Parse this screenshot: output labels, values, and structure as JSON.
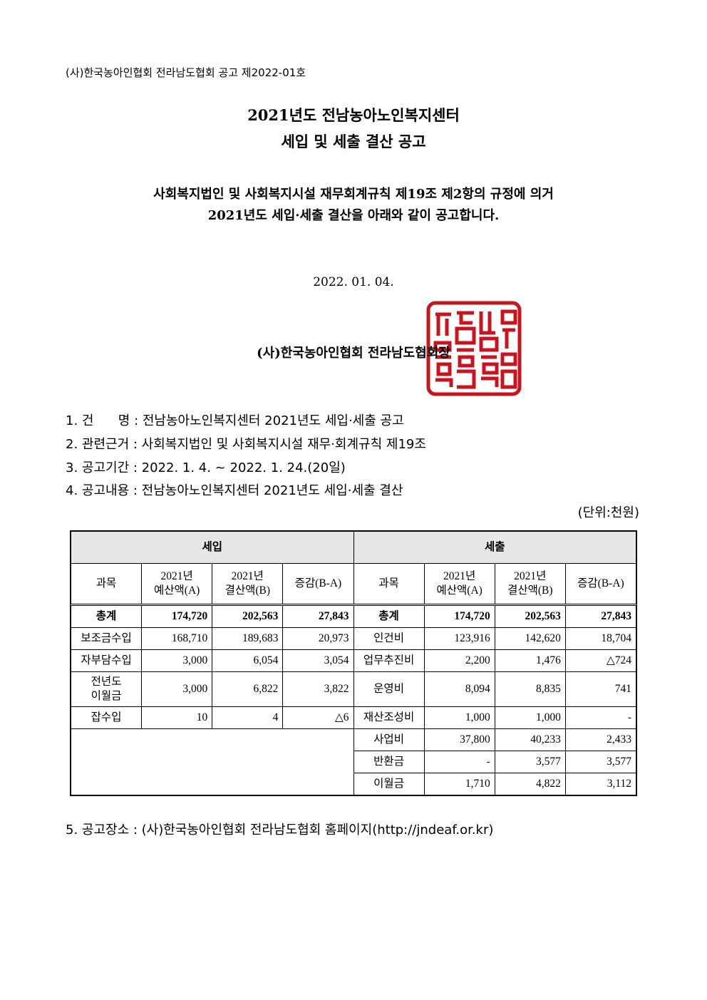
{
  "notice_header": "(사)한국농아인협회 전라남도협회 공고 제2022-01호",
  "title": [
    "2021년도 전남농아노인복지센터",
    "세입 및 세출 결산 공고"
  ],
  "intro": [
    "사회복지법인 및 사회복지시설 재무회계규칙 제19조 제2항의 규정에 의거",
    "2021년도 세입·세출 결산을 아래와 같이 공고합니다."
  ],
  "date": "2022. 01. 04.",
  "signatory": "(사)한국농아인협회 전라남도협회장",
  "seal": {
    "color": "#c8141e"
  },
  "items": [
    "1. 건      명 : 전남농아노인복지센터 2021년도 세입·세출 공고",
    "2. 관련근거 : 사회복지법인 및 사회복지시설 재무·회계규칙 제19조",
    "3. 공고기간 : 2022. 1. 4. ~ 2022. 1. 24.(20일)",
    "4. 공고내용 : 전남농아노인복지센터 2021년도 세입·세출 결산"
  ],
  "unit": "(단위:천원)",
  "table": {
    "revenue_label": "세입",
    "expense_label": "세출",
    "columns": [
      "과목",
      "2021년\n예산액(A)",
      "2021년\n결산액(B)",
      "증감(B-A)"
    ],
    "revenue_rows": [
      [
        "총계",
        "174,720",
        "202,563",
        "27,843"
      ],
      [
        "보조금수입",
        "168,710",
        "189,683",
        "20,973"
      ],
      [
        "자부담수입",
        "3,000",
        "6,054",
        "3,054"
      ],
      [
        "전년도\n이월금",
        "3,000",
        "6,822",
        "3,822"
      ],
      [
        "잡수입",
        "10",
        "4",
        "△6"
      ]
    ],
    "expense_rows": [
      [
        "총계",
        "174,720",
        "202,563",
        "27,843"
      ],
      [
        "인건비",
        "123,916",
        "142,620",
        "18,704"
      ],
      [
        "업무추진비",
        "2,200",
        "1,476",
        "△724"
      ],
      [
        "운영비",
        "8,094",
        "8,835",
        "741"
      ],
      [
        "재산조성비",
        "1,000",
        "1,000",
        "-"
      ],
      [
        "사업비",
        "37,800",
        "40,233",
        "2,433"
      ],
      [
        "반환금",
        "-",
        "3,577",
        "3,577"
      ],
      [
        "이월금",
        "1,710",
        "4,822",
        "3,112"
      ]
    ],
    "header_bg": "#e6e6e6"
  },
  "footer_item": "5. 공고장소 : (사)한국농아인협회 전라남도협회 홈페이지(http://jndeaf.or.kr)"
}
